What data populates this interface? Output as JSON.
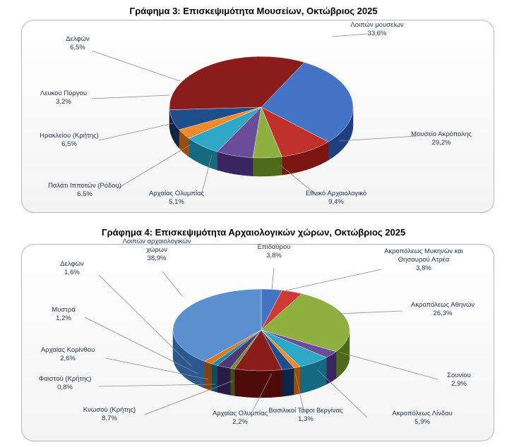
{
  "chart_data": [
    {
      "type": "pie",
      "title": "Γράφημα 3: Επισκεψιμότητα Μουσείων, Οκτώβριος 2025",
      "slices": [
        {
          "label": "Μουσείο Ακρόπολης",
          "value": 29.2,
          "text": "29,2%",
          "color": "#4472c4",
          "dark": "#1f3f80"
        },
        {
          "label": "Εθνικό Αρχαιολογικό",
          "value": 9.4,
          "text": "9,4%",
          "color": "#c0302b",
          "dark": "#7a1512"
        },
        {
          "label": "Αρχαίας Ολυμπίας",
          "value": 5.1,
          "text": "5,1%",
          "color": "#8fb040",
          "dark": "#4e6a1a"
        },
        {
          "label": "Παλάτι Ιπποτών (Ρόδου)",
          "value": 6.5,
          "text": "6,5%",
          "color": "#6a4d9a",
          "dark": "#3a2560"
        },
        {
          "label": "Ηρακλείου (Κρήτης)",
          "value": 6.5,
          "text": "6,5%",
          "color": "#2fa8c8",
          "dark": "#156a82"
        },
        {
          "label": "Λευκού Πύργου",
          "value": 3.2,
          "text": "3,2%",
          "color": "#f08a2a",
          "dark": "#9a4e0c"
        },
        {
          "label": "Δελφών",
          "value": 6.5,
          "text": "6,5%",
          "color": "#1f4f8a",
          "dark": "#0c2548"
        },
        {
          "label": "Λοιπών μουσείων",
          "value": 33.6,
          "text": "33,6%",
          "color": "#8b1c1c",
          "dark": "#4f0a0a"
        }
      ]
    },
    {
      "type": "pie",
      "title": "Γράφημα 4: Επισκεψιμότητα Αρχαιολογικών χώρων, Οκτώβριος 2025",
      "slices": [
        {
          "label": "Επιδαύρου",
          "value": 3.8,
          "text": "3,8%",
          "color": "#4472c4",
          "dark": "#1f3f80"
        },
        {
          "label": "Ακροπόλεως Μυκηνών και Θησαυρού Ατρέα",
          "value": 3.8,
          "text": "3,8%",
          "color": "#d03a34",
          "dark": "#7a1512"
        },
        {
          "label": "Ακροπόλεως Αθηνών",
          "value": 26.3,
          "text": "26,3%",
          "color": "#8fb040",
          "dark": "#4e6a1a"
        },
        {
          "label": "Σουνίου",
          "value": 2.9,
          "text": "2,9%",
          "color": "#6a4d9a",
          "dark": "#3a2560"
        },
        {
          "label": "Ακροπόλεως Λίνδου",
          "value": 5.9,
          "text": "5,9%",
          "color": "#2fa8c8",
          "dark": "#156a82"
        },
        {
          "label": "Βασιλικοί Τάφοι Βεργίνας",
          "value": 1.3,
          "text": "1,3%",
          "color": "#f08a2a",
          "dark": "#9a4e0c"
        },
        {
          "label": "Αρχαίας Ολυμπίας",
          "value": 2.2,
          "text": "2,2%",
          "color": "#1f4f8a",
          "dark": "#0c2548"
        },
        {
          "label": "Κνωσού (Κρήτης)",
          "value": 8.7,
          "text": "8,7%",
          "color": "#8b1c1c",
          "dark": "#4f0a0a"
        },
        {
          "label": "Φαιστού (Κρήτης)",
          "value": 0.8,
          "text": "0,8%",
          "color": "#6f8d2a",
          "dark": "#3e5212"
        },
        {
          "label": "Αρχαίας Κορίνθου",
          "value": 2.6,
          "text": "2,6%",
          "color": "#4e3878",
          "dark": "#2a1a48"
        },
        {
          "label": "Μυστρά",
          "value": 1.2,
          "text": "1,2%",
          "color": "#1d8aa8",
          "dark": "#0c4e60"
        },
        {
          "label": "Δελφών",
          "value": 1.6,
          "text": "1,6%",
          "color": "#d77a22",
          "dark": "#84420a"
        },
        {
          "label": "Λοιπών αρχαιολογικών χώρων",
          "value": 38.9,
          "text": "38,9%",
          "color": "#5b8fd0",
          "dark": "#2c5890"
        }
      ]
    }
  ]
}
